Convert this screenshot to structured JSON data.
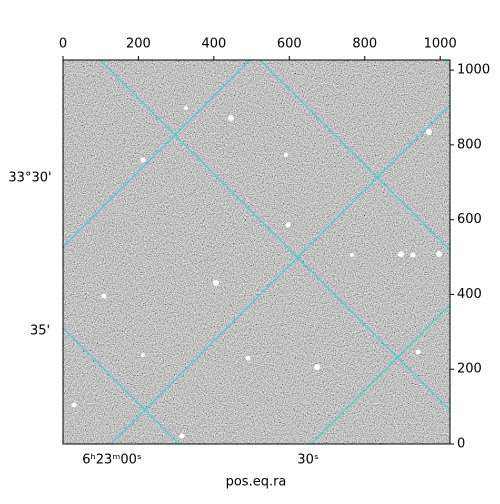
{
  "chart_data": {
    "type": "image",
    "xlim": [
      0,
      1026
    ],
    "ylim": [
      0,
      1027
    ],
    "xticks": [
      0,
      200,
      400,
      600,
      800,
      1000
    ],
    "yticks": [
      0,
      200,
      400,
      600,
      800,
      1000
    ],
    "grid_color": "#40d0d0",
    "dec_tick_labels": [
      "33°30'",
      "35'"
    ],
    "ra_tick_labels": [
      "6ʰ23ᵐ00ˢ",
      "30ˢ"
    ],
    "xlabel": "pos.eq.ra"
  }
}
